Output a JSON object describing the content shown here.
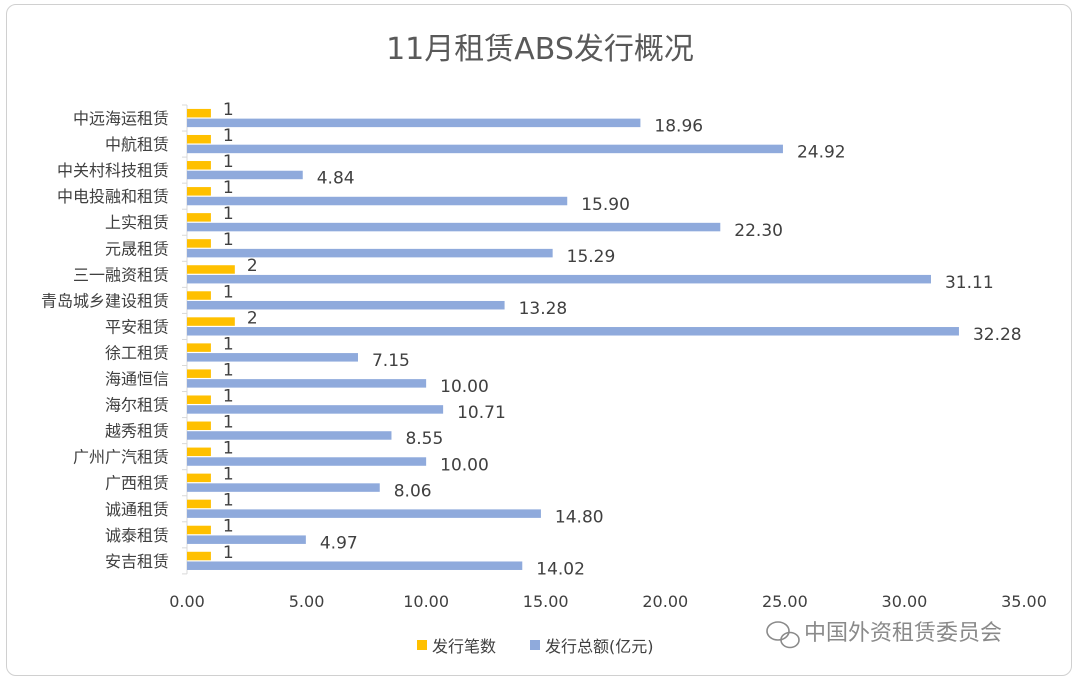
{
  "chart_data": {
    "type": "bar",
    "orientation": "horizontal",
    "title": "11月租赁ABS发行概况",
    "categories": [
      "中远海运租赁",
      "中航租赁",
      "中关村科技租赁",
      "中电投融和租赁",
      "上实租赁",
      "元晟租赁",
      "三一融资租赁",
      "青岛城乡建设租赁",
      "平安租赁",
      "徐工租赁",
      "海通恒信",
      "海尔租赁",
      "越秀租赁",
      "广州广汽租赁",
      "广西租赁",
      "诚通租赁",
      "诚泰租赁",
      "安吉租赁"
    ],
    "series": [
      {
        "name": "发行笔数",
        "color": "#FFC000",
        "values": [
          1,
          1,
          1,
          1,
          1,
          1,
          2,
          1,
          2,
          1,
          1,
          1,
          1,
          1,
          1,
          1,
          1,
          1
        ],
        "labels": [
          "1",
          "1",
          "1",
          "1",
          "1",
          "1",
          "2",
          "1",
          "2",
          "1",
          "1",
          "1",
          "1",
          "1",
          "1",
          "1",
          "1",
          "1"
        ]
      },
      {
        "name": "发行总额(亿元)",
        "color": "#8FAADC",
        "values": [
          18.96,
          24.92,
          4.84,
          15.9,
          22.3,
          15.29,
          31.11,
          13.28,
          32.28,
          7.15,
          10.0,
          10.71,
          8.55,
          10.0,
          8.06,
          14.8,
          4.97,
          14.02
        ],
        "labels": [
          "18.96",
          "24.92",
          "4.84",
          "15.90",
          "22.30",
          "15.29",
          "31.11",
          "13.28",
          "32.28",
          "7.15",
          "10.00",
          "10.71",
          "8.55",
          "10.00",
          "8.06",
          "14.80",
          "4.97",
          "14.02"
        ]
      }
    ],
    "xlim": [
      0,
      35
    ],
    "xticks": [
      0,
      5,
      10,
      15,
      20,
      25,
      30,
      35
    ],
    "xtick_labels": [
      "0.00",
      "5.00",
      "10.00",
      "15.00",
      "20.00",
      "25.00",
      "30.00",
      "35.00"
    ],
    "grid": false,
    "legend_position": "bottom"
  },
  "watermark": {
    "text": "中国外资租赁委员会",
    "icon": "wechat-icon"
  }
}
